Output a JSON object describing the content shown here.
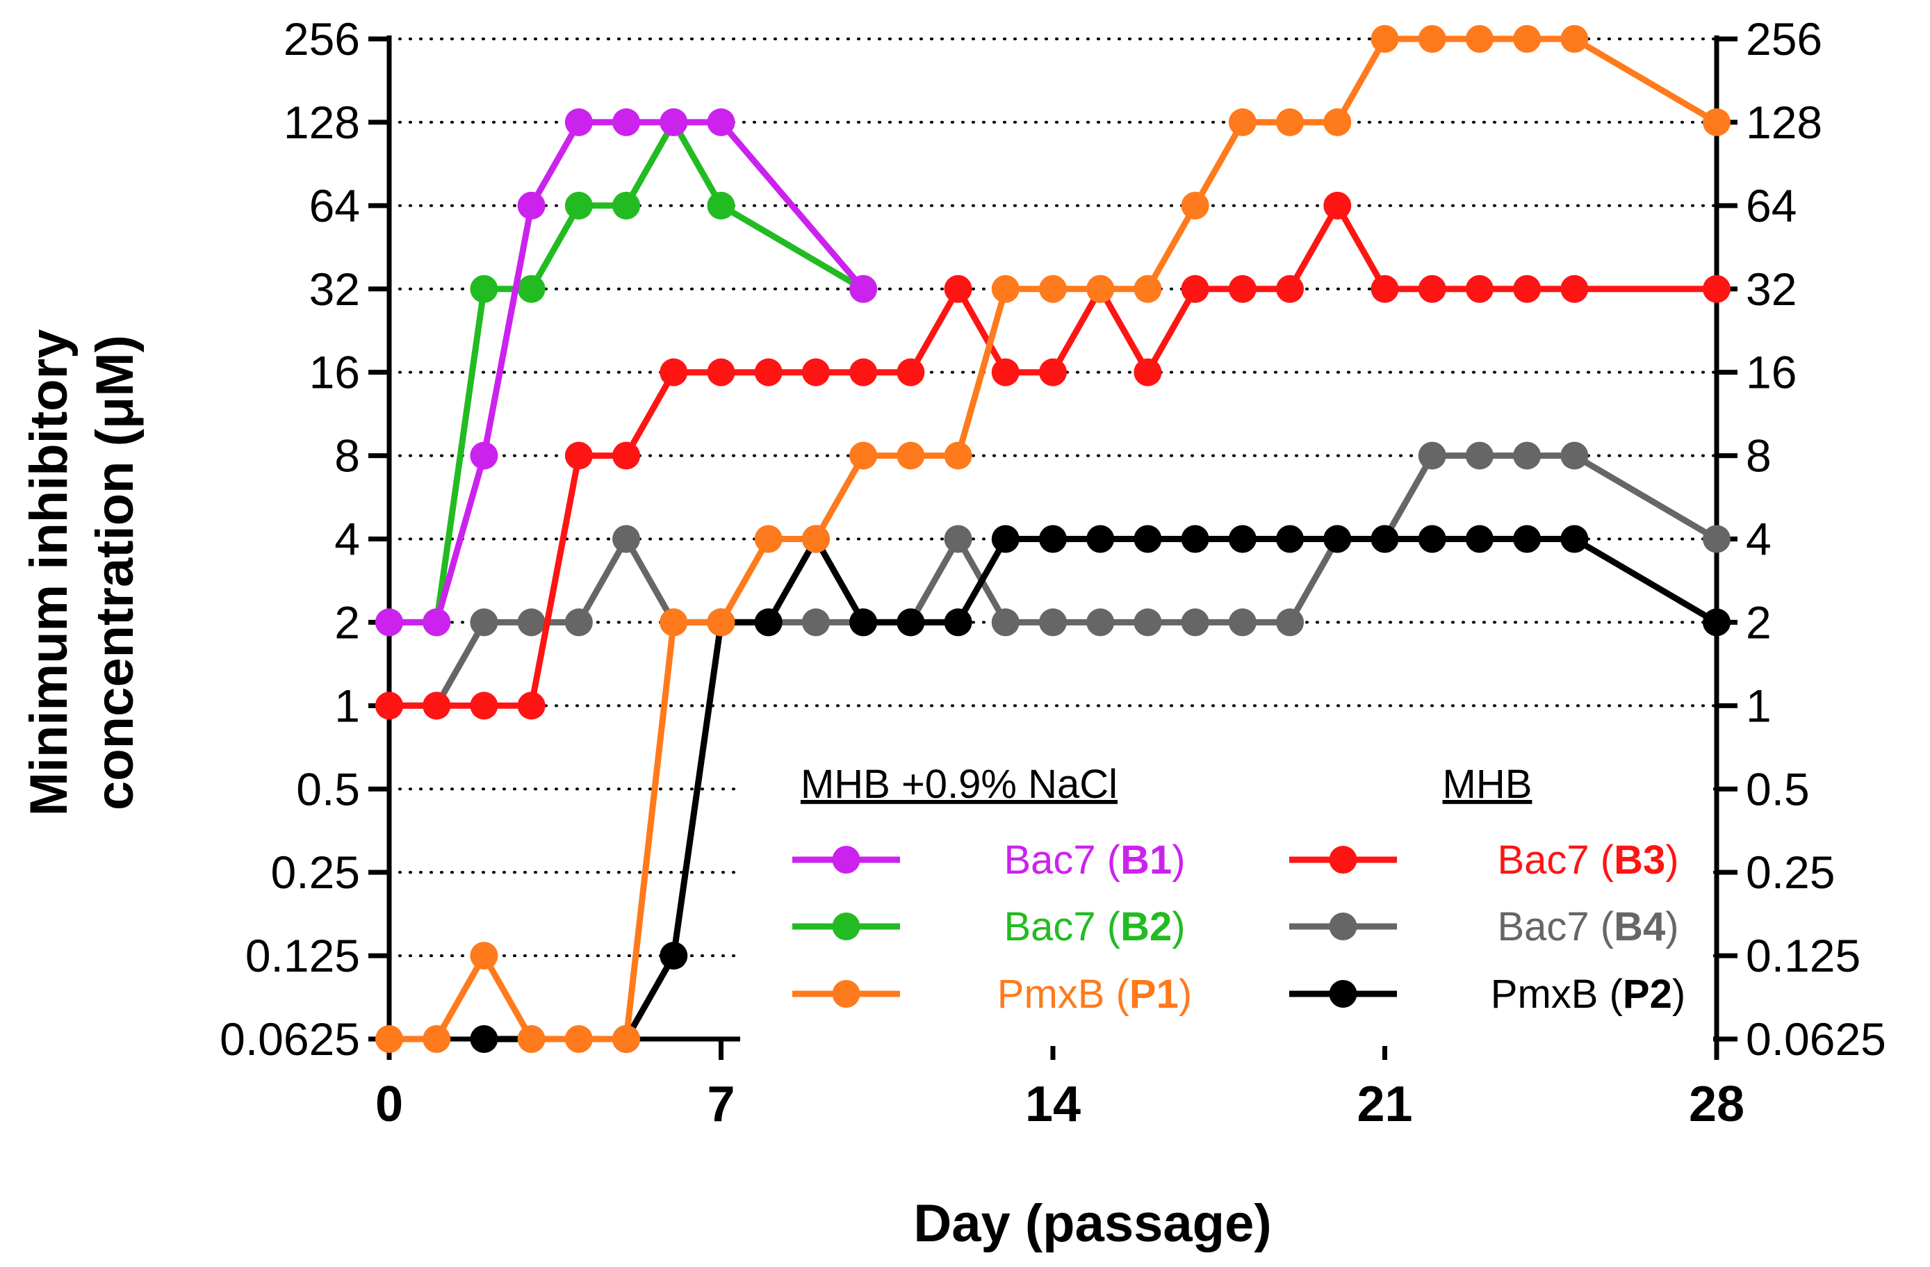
{
  "chart_data": {
    "type": "line",
    "xlabel": "Day (passage)",
    "ylabel_line1": "Minimum inhibitory",
    "ylabel_line2": "concentration (μM)",
    "xlim": [
      0,
      28
    ],
    "x_ticks": [
      0,
      7,
      14,
      21,
      28
    ],
    "y_scale": "log2",
    "ylim": [
      0.0625,
      256
    ],
    "y_ticks": [
      0.0625,
      0.125,
      0.25,
      0.5,
      1,
      2,
      4,
      8,
      16,
      32,
      64,
      128,
      256
    ],
    "y_tick_labels": [
      "0.0625",
      "0.125",
      "0.25",
      "0.5",
      "1",
      "2",
      "4",
      "8",
      "16",
      "32",
      "64",
      "128",
      "256"
    ],
    "grid": "horizontal dotted",
    "secondary_y_axis": true,
    "legend": {
      "position": "bottom-right",
      "groups": [
        {
          "heading": "MHB +0.9% NaCl",
          "series": [
            "B1",
            "B2",
            "P1"
          ]
        },
        {
          "heading": "MHB",
          "series": [
            "B3",
            "B4",
            "P2"
          ]
        }
      ]
    },
    "series": [
      {
        "id": "B1",
        "name": "Bac7",
        "tag": "B1",
        "color": "#cc22ee",
        "x": [
          0,
          1,
          2,
          3,
          4,
          5,
          6,
          7,
          10
        ],
        "y": [
          2,
          2,
          8,
          64,
          128,
          128,
          128,
          128,
          32
        ]
      },
      {
        "id": "B2",
        "name": "Bac7",
        "tag": "B2",
        "color": "#22bb22",
        "x": [
          0,
          1,
          2,
          3,
          4,
          5,
          6,
          7,
          10
        ],
        "y": [
          2,
          2,
          32,
          32,
          64,
          64,
          128,
          64,
          32
        ]
      },
      {
        "id": "P1",
        "name": "PmxB",
        "tag": "P1",
        "color": "#ff7a1c",
        "x": [
          0,
          1,
          2,
          3,
          4,
          5,
          6,
          7,
          8,
          9,
          10,
          11,
          12,
          13,
          14,
          15,
          16,
          17,
          18,
          19,
          20,
          21,
          22,
          23,
          24,
          25,
          28
        ],
        "y": [
          0.0625,
          0.0625,
          0.125,
          0.0625,
          0.0625,
          0.0625,
          2,
          2,
          4,
          4,
          8,
          8,
          8,
          32,
          32,
          32,
          32,
          64,
          128,
          128,
          128,
          256,
          256,
          256,
          256,
          256,
          128
        ]
      },
      {
        "id": "B3",
        "name": "Bac7",
        "tag": "B3",
        "color": "#ff1414",
        "x": [
          0,
          1,
          2,
          3,
          4,
          5,
          6,
          7,
          8,
          9,
          10,
          11,
          12,
          13,
          14,
          15,
          16,
          17,
          18,
          19,
          20,
          21,
          22,
          23,
          24,
          25,
          28
        ],
        "y": [
          1,
          1,
          1,
          1,
          8,
          8,
          16,
          16,
          16,
          16,
          16,
          16,
          32,
          16,
          16,
          32,
          16,
          32,
          32,
          32,
          64,
          32,
          32,
          32,
          32,
          32,
          32
        ]
      },
      {
        "id": "B4",
        "name": "Bac7",
        "tag": "B4",
        "color": "#666666",
        "x": [
          0,
          1,
          2,
          3,
          4,
          5,
          6,
          7,
          8,
          9,
          10,
          11,
          12,
          13,
          14,
          15,
          16,
          17,
          18,
          19,
          20,
          21,
          22,
          23,
          24,
          25,
          28
        ],
        "y": [
          1,
          1,
          2,
          2,
          2,
          4,
          2,
          2,
          2,
          2,
          2,
          2,
          4,
          2,
          2,
          2,
          2,
          2,
          2,
          2,
          4,
          4,
          8,
          8,
          8,
          8,
          4
        ]
      },
      {
        "id": "P2",
        "name": "PmxB",
        "tag": "P2",
        "color": "#000000",
        "x": [
          2,
          5,
          6,
          7,
          8,
          9,
          10,
          11,
          12,
          13,
          14,
          15,
          16,
          17,
          18,
          19,
          20,
          21,
          22,
          23,
          24,
          25,
          28
        ],
        "y": [
          0.0625,
          0.0625,
          0.125,
          2,
          2,
          4,
          2,
          2,
          2,
          4,
          4,
          4,
          4,
          4,
          4,
          4,
          4,
          4,
          4,
          4,
          4,
          4,
          2
        ]
      }
    ]
  }
}
